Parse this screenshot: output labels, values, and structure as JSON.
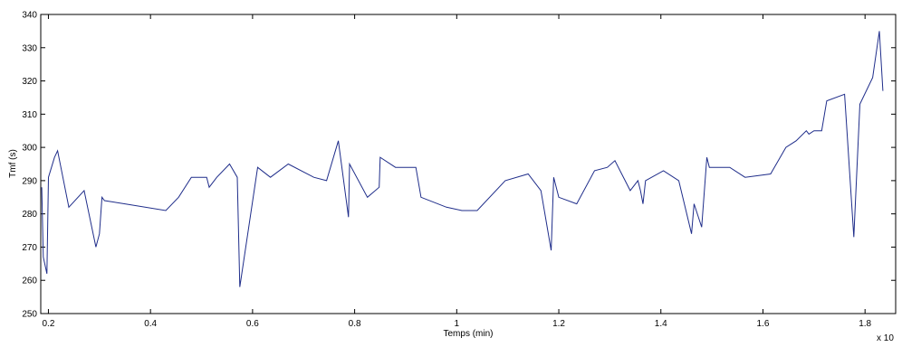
{
  "chart_data": {
    "type": "line",
    "title": "",
    "xlabel": "Temps (min)",
    "ylabel": "Tmf (s)",
    "x_exponent_label": "x 10",
    "xlim": [
      0.185,
      1.86
    ],
    "ylim": [
      250,
      340
    ],
    "x_ticks": [
      0.2,
      0.4,
      0.6,
      0.8,
      1,
      1.2,
      1.4,
      1.6,
      1.8
    ],
    "x_tick_labels": [
      "0.2",
      "0.4",
      "0.6",
      "0.8",
      "1",
      "1.2",
      "1.4",
      "1.6",
      "1.8"
    ],
    "y_ticks": [
      250,
      260,
      270,
      280,
      290,
      300,
      310,
      320,
      330,
      340
    ],
    "y_tick_labels": [
      "250",
      "260",
      "270",
      "280",
      "290",
      "300",
      "310",
      "320",
      "330",
      "340"
    ],
    "grid": false,
    "line_color": "#1f2d8a",
    "series": [
      {
        "x": [
          0.187,
          0.19,
          0.197,
          0.2,
          0.212,
          0.218,
          0.24,
          0.27,
          0.293,
          0.3,
          0.305,
          0.31,
          0.35,
          0.43,
          0.455,
          0.48,
          0.51,
          0.515,
          0.53,
          0.555,
          0.57,
          0.575,
          0.61,
          0.635,
          0.67,
          0.72,
          0.745,
          0.768,
          0.788,
          0.79,
          0.825,
          0.848,
          0.85,
          0.88,
          0.92,
          0.93,
          0.98,
          1.01,
          1.04,
          1.095,
          1.14,
          1.165,
          1.185,
          1.19,
          1.2,
          1.235,
          1.27,
          1.295,
          1.31,
          1.34,
          1.355,
          1.36,
          1.365,
          1.37,
          1.405,
          1.435,
          1.46,
          1.465,
          1.48,
          1.49,
          1.495,
          1.51,
          1.535,
          1.565,
          1.615,
          1.63,
          1.645,
          1.665,
          1.685,
          1.69,
          1.7,
          1.715,
          1.725,
          1.76,
          1.778,
          1.79,
          1.815,
          1.828,
          1.835
        ],
        "y": [
          288,
          267,
          262,
          291,
          297,
          299,
          282,
          287,
          270,
          274,
          285,
          284,
          283,
          281,
          285,
          291,
          291,
          288,
          291,
          295,
          291,
          258,
          294,
          291,
          295,
          291,
          290,
          302,
          279,
          295,
          285,
          288,
          297,
          294,
          294,
          285,
          282,
          281,
          281,
          290,
          292,
          287,
          269,
          291,
          285,
          283,
          293,
          294,
          296,
          287,
          290,
          287,
          283,
          290,
          293,
          290,
          274,
          283,
          276,
          297,
          294,
          294,
          294,
          291,
          292,
          296,
          300,
          302,
          305,
          304,
          305,
          305,
          314,
          316,
          273,
          313,
          321,
          335,
          317
        ]
      }
    ]
  }
}
